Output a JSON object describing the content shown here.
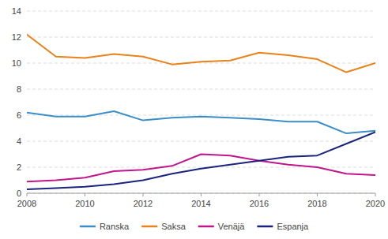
{
  "chart_data": {
    "type": "line",
    "x": [
      2008,
      2009,
      2010,
      2011,
      2012,
      2013,
      2014,
      2015,
      2016,
      2017,
      2018,
      2019,
      2020
    ],
    "series": [
      {
        "name": "Ranska",
        "color": "#3B8EC8",
        "values": [
          6.2,
          5.9,
          5.9,
          6.3,
          5.6,
          5.8,
          5.9,
          5.8,
          5.7,
          5.5,
          5.5,
          4.6,
          4.8
        ]
      },
      {
        "name": "Saksa",
        "color": "#E8821A",
        "values": [
          12.2,
          10.5,
          10.4,
          10.7,
          10.5,
          9.9,
          10.1,
          10.2,
          10.8,
          10.6,
          10.3,
          9.3,
          10.0
        ]
      },
      {
        "name": "Venäjä",
        "color": "#C0168A",
        "values": [
          0.9,
          1.0,
          1.2,
          1.7,
          1.8,
          2.1,
          3.0,
          2.9,
          2.5,
          2.2,
          2.0,
          1.5,
          1.4
        ]
      },
      {
        "name": "Espanja",
        "color": "#1A237E",
        "values": [
          0.3,
          0.4,
          0.5,
          0.7,
          1.0,
          1.5,
          1.9,
          2.2,
          2.5,
          2.8,
          2.9,
          3.8,
          4.7
        ]
      }
    ],
    "xlim": [
      2008,
      2020
    ],
    "xticks": [
      2008,
      2010,
      2012,
      2014,
      2016,
      2018,
      2020
    ],
    "ylim": [
      0,
      14
    ],
    "yticks": [
      0,
      2,
      4,
      6,
      8,
      10,
      12,
      14
    ],
    "grid": true,
    "legend": "bottom"
  }
}
